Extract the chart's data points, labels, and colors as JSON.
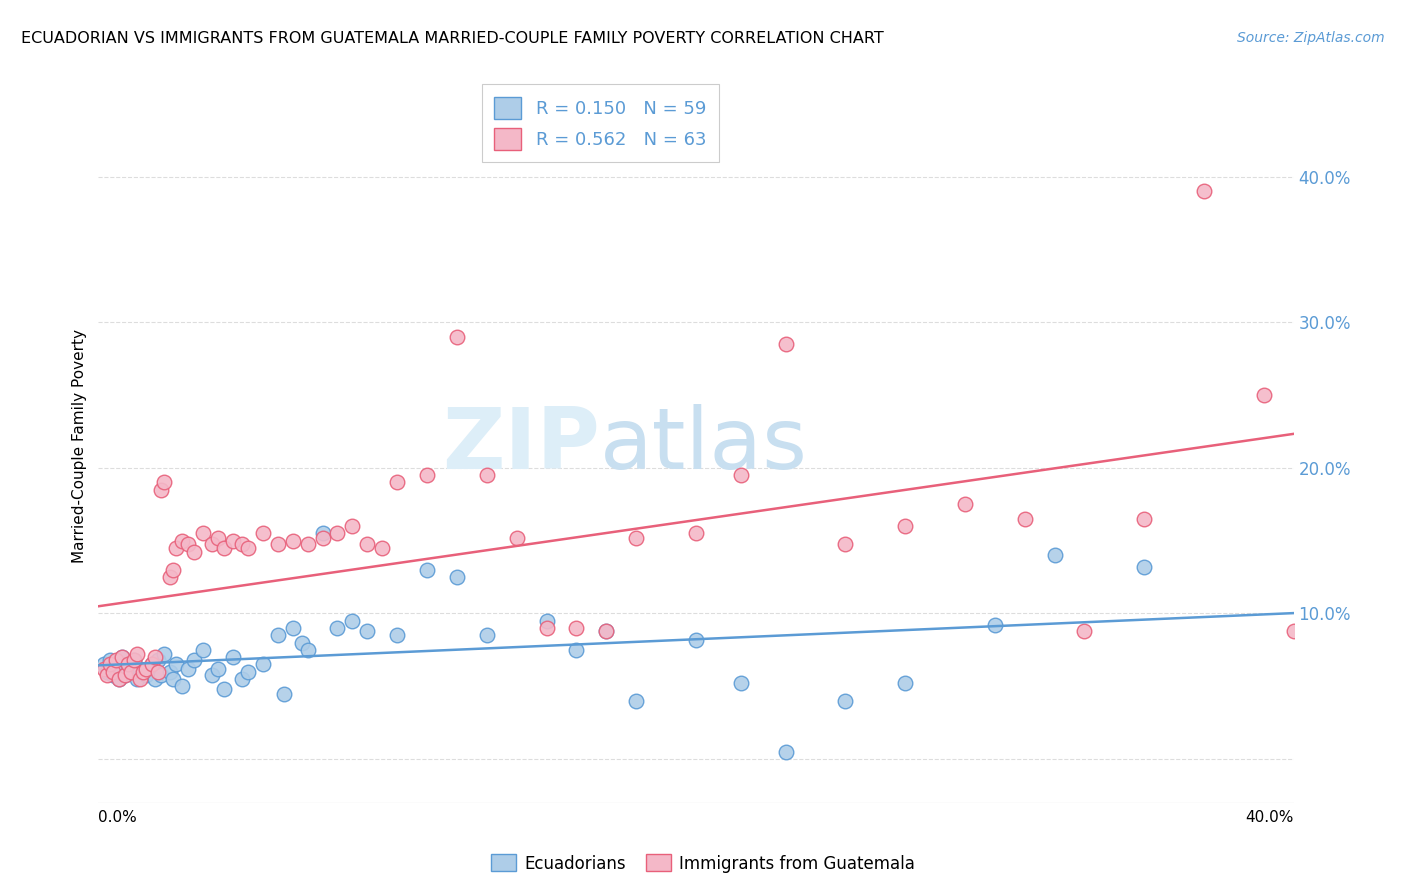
{
  "title": "ECUADORIAN VS IMMIGRANTS FROM GUATEMALA MARRIED-COUPLE FAMILY POVERTY CORRELATION CHART",
  "source": "Source: ZipAtlas.com",
  "ylabel": "Married-Couple Family Poverty",
  "xlim": [
    0.0,
    0.4
  ],
  "ylim": [
    -0.03,
    0.46
  ],
  "yticks": [
    0.0,
    0.1,
    0.2,
    0.3,
    0.4
  ],
  "ytick_labels": [
    "",
    "10.0%",
    "20.0%",
    "30.0%",
    "40.0%"
  ],
  "legend_R1": "R = 0.150",
  "legend_N1": "N = 59",
  "legend_R2": "R = 0.562",
  "legend_N2": "N = 63",
  "color_blue_face": "#aecde8",
  "color_blue_edge": "#5b9bd5",
  "color_pink_face": "#f4b8c8",
  "color_pink_edge": "#e8607a",
  "color_line_blue": "#5b9bd5",
  "color_line_pink": "#e8607a",
  "color_tick_label": "#5b9bd5",
  "watermark_color": "#ddeef8",
  "background_color": "#ffffff",
  "grid_color": "#dddddd",
  "ecu_x": [
    0.002,
    0.003,
    0.004,
    0.005,
    0.006,
    0.007,
    0.008,
    0.009,
    0.01,
    0.011,
    0.012,
    0.013,
    0.014,
    0.015,
    0.016,
    0.018,
    0.019,
    0.02,
    0.021,
    0.022,
    0.024,
    0.025,
    0.026,
    0.028,
    0.03,
    0.032,
    0.035,
    0.038,
    0.04,
    0.042,
    0.045,
    0.048,
    0.05,
    0.055,
    0.06,
    0.062,
    0.065,
    0.068,
    0.07,
    0.075,
    0.08,
    0.085,
    0.09,
    0.1,
    0.11,
    0.12,
    0.13,
    0.15,
    0.16,
    0.17,
    0.18,
    0.2,
    0.215,
    0.23,
    0.25,
    0.27,
    0.3,
    0.32,
    0.35
  ],
  "ecu_y": [
    0.065,
    0.06,
    0.068,
    0.058,
    0.062,
    0.055,
    0.07,
    0.058,
    0.065,
    0.06,
    0.068,
    0.055,
    0.062,
    0.06,
    0.058,
    0.065,
    0.055,
    0.068,
    0.058,
    0.072,
    0.06,
    0.055,
    0.065,
    0.05,
    0.062,
    0.068,
    0.075,
    0.058,
    0.062,
    0.048,
    0.07,
    0.055,
    0.06,
    0.065,
    0.085,
    0.045,
    0.09,
    0.08,
    0.075,
    0.155,
    0.09,
    0.095,
    0.088,
    0.085,
    0.13,
    0.125,
    0.085,
    0.095,
    0.075,
    0.088,
    0.04,
    0.082,
    0.052,
    0.005,
    0.04,
    0.052,
    0.092,
    0.14,
    0.132
  ],
  "guat_x": [
    0.002,
    0.003,
    0.004,
    0.005,
    0.006,
    0.007,
    0.008,
    0.009,
    0.01,
    0.011,
    0.012,
    0.013,
    0.014,
    0.015,
    0.016,
    0.018,
    0.019,
    0.02,
    0.021,
    0.022,
    0.024,
    0.025,
    0.026,
    0.028,
    0.03,
    0.032,
    0.035,
    0.038,
    0.04,
    0.042,
    0.045,
    0.048,
    0.05,
    0.055,
    0.06,
    0.065,
    0.07,
    0.075,
    0.08,
    0.085,
    0.09,
    0.095,
    0.1,
    0.11,
    0.12,
    0.13,
    0.14,
    0.15,
    0.16,
    0.17,
    0.18,
    0.2,
    0.215,
    0.23,
    0.25,
    0.27,
    0.29,
    0.31,
    0.33,
    0.35,
    0.37,
    0.39,
    0.4
  ],
  "guat_y": [
    0.062,
    0.058,
    0.065,
    0.06,
    0.068,
    0.055,
    0.07,
    0.058,
    0.065,
    0.06,
    0.068,
    0.072,
    0.055,
    0.06,
    0.062,
    0.065,
    0.07,
    0.06,
    0.185,
    0.19,
    0.125,
    0.13,
    0.145,
    0.15,
    0.148,
    0.142,
    0.155,
    0.148,
    0.152,
    0.145,
    0.15,
    0.148,
    0.145,
    0.155,
    0.148,
    0.15,
    0.148,
    0.152,
    0.155,
    0.16,
    0.148,
    0.145,
    0.19,
    0.195,
    0.29,
    0.195,
    0.152,
    0.09,
    0.09,
    0.088,
    0.152,
    0.155,
    0.195,
    0.285,
    0.148,
    0.16,
    0.175,
    0.165,
    0.088,
    0.165,
    0.39,
    0.25,
    0.088
  ]
}
